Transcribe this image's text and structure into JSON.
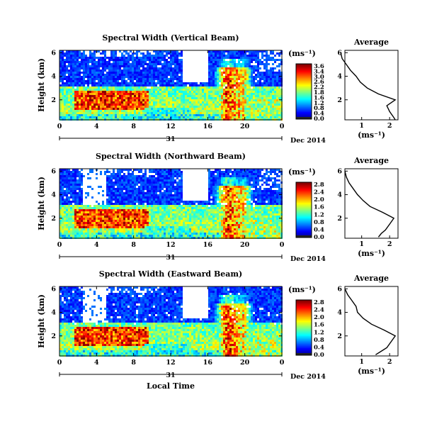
{
  "chart_data": [
    {
      "type": "heatmap",
      "title": "Spectral Width (Vertical Beam)",
      "ylabel": "Height (km)",
      "xticks": [
        "0",
        "4",
        "8",
        "12",
        "16",
        "20",
        "0"
      ],
      "yticks": [
        "2",
        "4",
        "6"
      ],
      "date_marker": "31",
      "date_label": "Dec 2014",
      "colorbar": {
        "unit": "(ms⁻¹)",
        "ticks": [
          "3.6",
          "3.4",
          "3.0",
          "2.6",
          "2.2",
          "1.8",
          "1.6",
          "1.2",
          "0.8",
          "0.4",
          "0.0"
        ],
        "range": [
          0,
          3.8
        ]
      },
      "average": {
        "title": "Average",
        "xlabel": "(ms⁻¹)",
        "xticks": [
          "1",
          "2"
        ],
        "yticks": [
          "2",
          "4",
          "6"
        ],
        "profile": [
          [
            0.3,
            2.2
          ],
          [
            0.5,
            2.15
          ],
          [
            1,
            2.0
          ],
          [
            1.5,
            1.9
          ],
          [
            2,
            2.2
          ],
          [
            2.5,
            1.6
          ],
          [
            3,
            1.2
          ],
          [
            3.5,
            0.95
          ],
          [
            4,
            0.8
          ],
          [
            4.5,
            0.6
          ],
          [
            5,
            0.45
          ],
          [
            5.5,
            0.3
          ],
          [
            6,
            0.25
          ]
        ]
      }
    },
    {
      "type": "heatmap",
      "title": "Spectral Width (Northward Beam)",
      "ylabel": "Height (km)",
      "xticks": [
        "0",
        "4",
        "8",
        "12",
        "16",
        "20",
        "0"
      ],
      "yticks": [
        "2",
        "4",
        "6"
      ],
      "date_marker": "31",
      "date_label": "Dec 2014",
      "colorbar": {
        "unit": "(ms⁻¹)",
        "ticks": [
          "2.8",
          "2.4",
          "2.0",
          "1.6",
          "1.2",
          "0.8",
          "0.4",
          "0.0"
        ],
        "range": [
          0,
          3.0
        ]
      },
      "average": {
        "title": "Average",
        "xlabel": "(ms⁻¹)",
        "xticks": [
          "1",
          "2"
        ],
        "yticks": [
          "2",
          "4",
          "6"
        ],
        "profile": [
          [
            0.4,
            1.6
          ],
          [
            0.7,
            1.7
          ],
          [
            1,
            1.85
          ],
          [
            1.5,
            2.0
          ],
          [
            2,
            2.15
          ],
          [
            2.5,
            1.75
          ],
          [
            3,
            1.3
          ],
          [
            3.5,
            1.05
          ],
          [
            4,
            0.85
          ],
          [
            4.5,
            0.7
          ],
          [
            5,
            0.55
          ],
          [
            5.5,
            0.45
          ],
          [
            6,
            0.4
          ]
        ]
      }
    },
    {
      "type": "heatmap",
      "title": "Spectral Width (Eastward Beam)",
      "ylabel": "Height (km)",
      "xticks": [
        "0",
        "4",
        "8",
        "12",
        "16",
        "20",
        "0"
      ],
      "yticks": [
        "2",
        "4",
        "6"
      ],
      "date_marker": "31",
      "date_label": "Dec 2014",
      "colorbar": {
        "unit": "(ms⁻¹)",
        "ticks": [
          "2.8",
          "2.4",
          "2.0",
          "1.6",
          "1.2",
          "0.8",
          "0.4",
          "0.0"
        ],
        "range": [
          0,
          3.0
        ]
      },
      "average": {
        "title": "Average",
        "xlabel": "(ms⁻¹)",
        "xticks": [
          "1",
          "2"
        ],
        "yticks": [
          "2",
          "4",
          "6"
        ],
        "profile": [
          [
            0.4,
            1.5
          ],
          [
            0.7,
            1.7
          ],
          [
            1,
            1.9
          ],
          [
            1.5,
            2.05
          ],
          [
            2,
            2.2
          ],
          [
            2.5,
            1.8
          ],
          [
            3,
            1.35
          ],
          [
            3.5,
            1.05
          ],
          [
            4,
            0.85
          ],
          [
            4.5,
            0.8
          ],
          [
            5,
            0.65
          ],
          [
            5.5,
            0.5
          ],
          [
            6,
            0.4
          ]
        ]
      }
    }
  ],
  "x_axis_title": "Local Time"
}
